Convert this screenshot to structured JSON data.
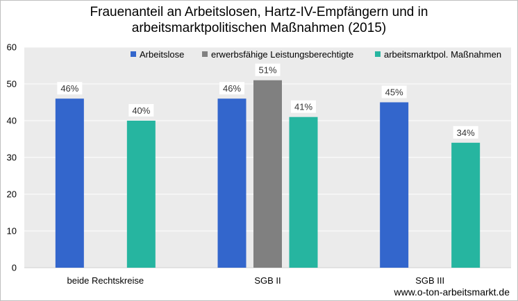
{
  "title_line1": "Frauenanteil an Arbeitslosen, Hartz-IV-Empfängern und in",
  "title_line2": "arbeitsmarktpolitischen Maßnahmen (2015)",
  "source": "www.o-ton-arbeitsmarkt.de",
  "chart_data": {
    "type": "bar",
    "title": "Frauenanteil an Arbeitslosen, Hartz-IV-Empfängern und in arbeitsmarktpolitischen Maßnahmen (2015)",
    "categories": [
      "beide Rechtskreise",
      "SGB II",
      "SGB III"
    ],
    "series": [
      {
        "name": "Arbeitslose",
        "color": "#3366CC",
        "values": [
          46,
          46,
          45
        ],
        "labels": [
          "46%",
          "46%",
          "45%"
        ]
      },
      {
        "name": "erwerbsfähige Leistungsberechtigte",
        "color": "#808080",
        "values": [
          null,
          51,
          null
        ],
        "labels": [
          null,
          "51%",
          null
        ]
      },
      {
        "name": "arbeitsmarktpol. Maßnahmen",
        "color": "#26B5A0",
        "values": [
          40,
          41,
          34
        ],
        "labels": [
          "40%",
          "41%",
          "34%"
        ]
      }
    ],
    "ylim": [
      0,
      60
    ],
    "yticks": [
      0,
      10,
      20,
      30,
      40,
      50,
      60
    ],
    "grid": true,
    "plot_background": "#ebebeb",
    "legend_position": "top-right"
  }
}
